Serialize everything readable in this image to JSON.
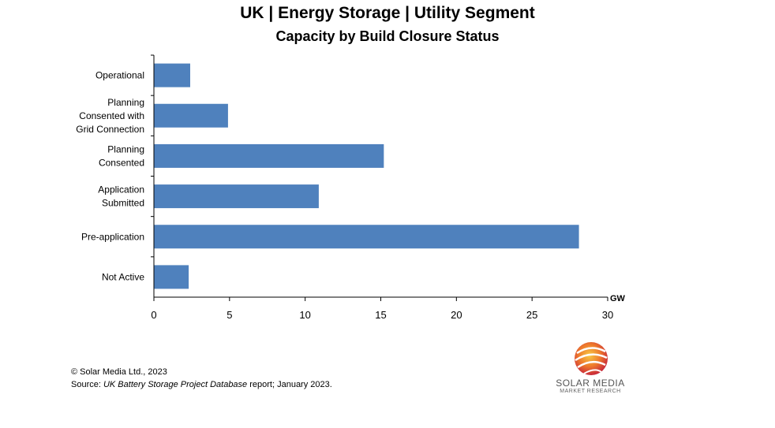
{
  "chart_data": {
    "type": "bar",
    "orientation": "horizontal",
    "title": "UK | Energy Storage | Utility Segment",
    "subtitle": "Capacity by Build Closure Status",
    "categories": [
      [
        "Operational"
      ],
      [
        "Planning",
        "Consented with",
        "Grid Connection"
      ],
      [
        "Planning",
        "Consented"
      ],
      [
        "Application",
        "Submitted"
      ],
      [
        "Pre-application"
      ],
      [
        "Not Active"
      ]
    ],
    "values": [
      2.4,
      4.9,
      15.2,
      10.9,
      28.1,
      2.3
    ],
    "unit_label": "GW",
    "xlim": [
      0,
      30
    ],
    "ticks": [
      "0",
      "5",
      "10",
      "15",
      "20",
      "25",
      "30"
    ],
    "grid": false,
    "legend": "none",
    "bar_color": "#4f81bd"
  },
  "footer": {
    "copyright": "© Solar Media Ltd., 2023",
    "source_prefix": "Source: ",
    "source_title": "UK Battery Storage Project Database",
    "source_suffix": " report; January 2023."
  },
  "logo": {
    "name": "SOLAR MEDIA",
    "sub": "MARKET RESEARCH"
  }
}
